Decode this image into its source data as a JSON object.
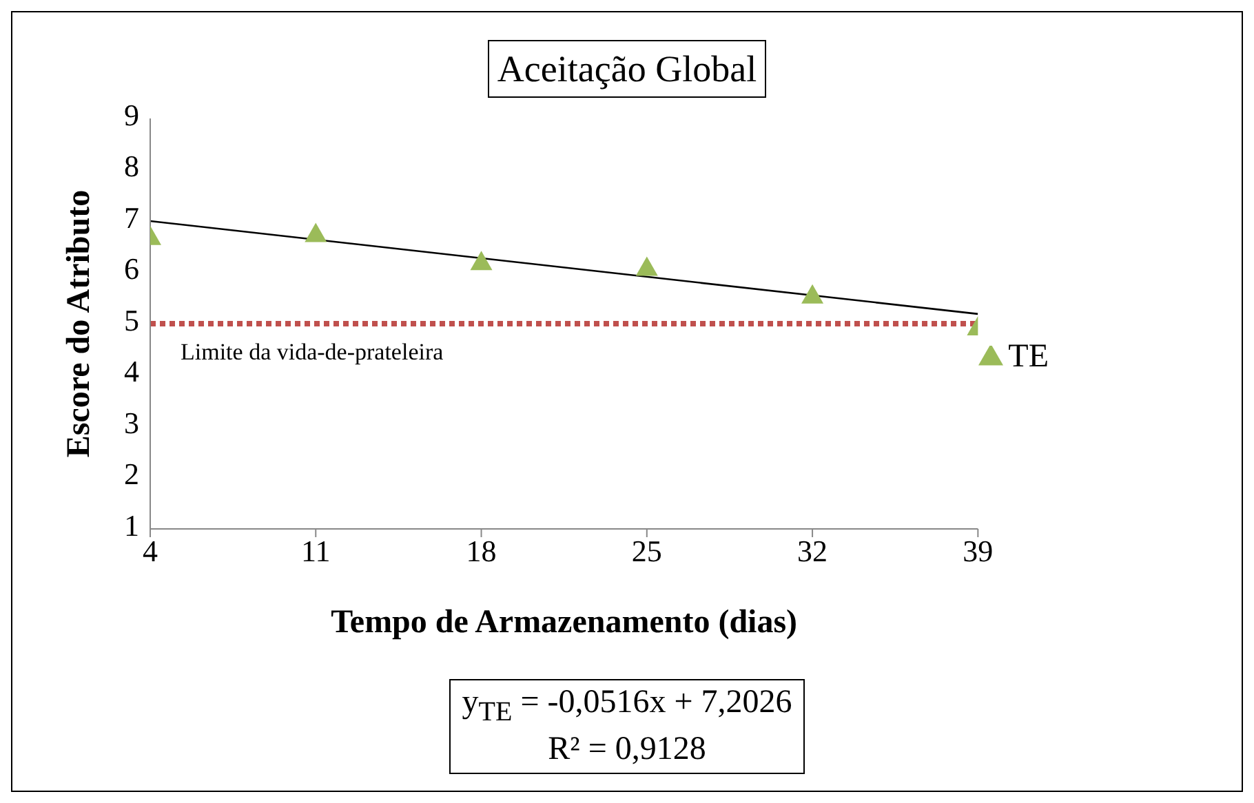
{
  "chart_data": {
    "type": "scatter",
    "title": "Aceitação Global",
    "xlabel": "Tempo de Armazenamento (dias)",
    "ylabel": "Escore do Atributo",
    "x": [
      4,
      11,
      18,
      25,
      32,
      39
    ],
    "series": [
      {
        "name": "TE",
        "color": "#9bbb59",
        "values": [
          6.72,
          6.78,
          6.23,
          6.12,
          5.58,
          4.96
        ],
        "marker": "triangle"
      },
      {
        "type": "line",
        "color": "#000000",
        "x": [
          4,
          39
        ],
        "values": [
          7.0,
          5.19
        ],
        "marker": "none"
      }
    ],
    "xlim": [
      4,
      39
    ],
    "xticks": [
      4,
      11,
      18,
      25,
      32,
      39
    ],
    "ylim": [
      1,
      9
    ],
    "yticks": [
      1,
      2,
      3,
      4,
      5,
      6,
      7,
      8,
      9
    ],
    "ref_lines": [
      {
        "axis": "y",
        "value": 5.0,
        "label": "Limite da vida-de-prateleira",
        "color": "#c0504d",
        "line_style": "dotted"
      }
    ],
    "legend": "right",
    "grid": false,
    "annotations": [
      "y$_{TE}$ = -0,0516x + 7,2026\nR² = 0,9128"
    ]
  }
}
